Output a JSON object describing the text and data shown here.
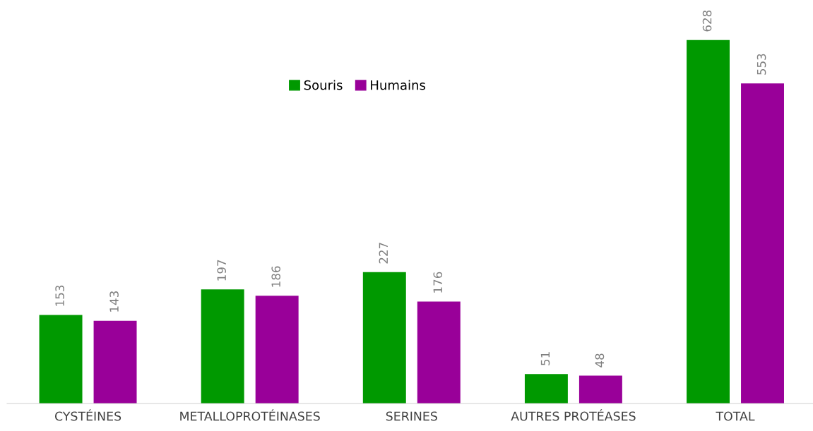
{
  "chart_data": {
    "type": "bar",
    "categories": [
      "CYSTÉINES",
      "METALLOPROTÉINASES",
      "SERINES",
      "AUTRES PROTÉASES",
      "TOTAL"
    ],
    "series": [
      {
        "name": "Souris",
        "color": "#009900",
        "values": [
          153,
          197,
          227,
          51,
          628
        ]
      },
      {
        "name": "Humains",
        "color": "#990099",
        "values": [
          143,
          186,
          176,
          48,
          553
        ]
      }
    ],
    "data_labels": true,
    "legend": "top",
    "grid": false
  }
}
